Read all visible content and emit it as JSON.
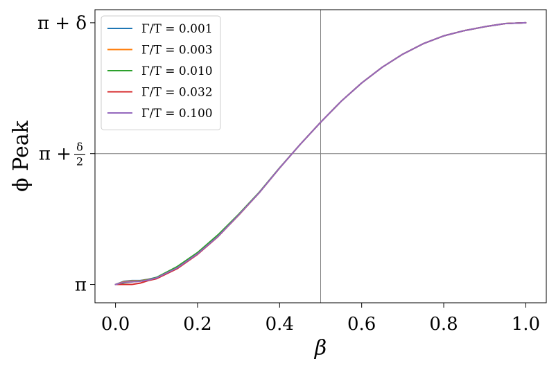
{
  "chart_data": {
    "type": "line",
    "xlabel": "β",
    "ylabel": "ϕ Peak",
    "xlim": [
      -0.05,
      1.05
    ],
    "ylim": [
      -0.07,
      1.05
    ],
    "x_ticks": [
      {
        "value": 0.0,
        "label": "0.0"
      },
      {
        "value": 0.2,
        "label": "0.2"
      },
      {
        "value": 0.4,
        "label": "0.4"
      },
      {
        "value": 0.6,
        "label": "0.6"
      },
      {
        "value": 0.8,
        "label": "0.8"
      },
      {
        "value": 1.0,
        "label": "1.0"
      }
    ],
    "y_ticks": [
      {
        "value": 0.0,
        "label": "π"
      },
      {
        "value": 0.5,
        "label": "π + δ/2"
      },
      {
        "value": 1.0,
        "label": "π + δ"
      }
    ],
    "reference_lines": {
      "x": 0.5,
      "y": 0.5
    },
    "legend": {
      "position": "top-left"
    },
    "series": [
      {
        "name": "Γ/T = 0.001",
        "color": "#1f77b4",
        "x": [
          0.0,
          0.02,
          0.04,
          0.06,
          0.08,
          0.1,
          0.15,
          0.2,
          0.25,
          0.3,
          0.35,
          0.4,
          0.45,
          0.5,
          0.55,
          0.6,
          0.65,
          0.7,
          0.75,
          0.8,
          0.85,
          0.9,
          0.95,
          1.0
        ],
        "y": [
          0.0,
          0.012,
          0.015,
          0.015,
          0.02,
          0.027,
          0.065,
          0.118,
          0.185,
          0.265,
          0.35,
          0.445,
          0.535,
          0.62,
          0.7,
          0.77,
          0.83,
          0.88,
          0.92,
          0.95,
          0.97,
          0.985,
          0.997,
          1.0
        ]
      },
      {
        "name": "Γ/T = 0.003",
        "color": "#ff7f0e",
        "x": [
          0.0,
          0.02,
          0.04,
          0.06,
          0.08,
          0.1,
          0.15,
          0.2,
          0.25,
          0.3,
          0.35,
          0.4,
          0.45,
          0.5,
          0.55,
          0.6,
          0.65,
          0.7,
          0.75,
          0.8,
          0.85,
          0.9,
          0.95,
          1.0
        ],
        "y": [
          0.0,
          0.01,
          0.013,
          0.014,
          0.019,
          0.026,
          0.064,
          0.117,
          0.184,
          0.264,
          0.35,
          0.445,
          0.535,
          0.62,
          0.7,
          0.77,
          0.83,
          0.88,
          0.92,
          0.95,
          0.97,
          0.985,
          0.997,
          1.0
        ]
      },
      {
        "name": "Γ/T = 0.010",
        "color": "#2ca02c",
        "x": [
          0.0,
          0.02,
          0.04,
          0.06,
          0.08,
          0.1,
          0.15,
          0.2,
          0.25,
          0.3,
          0.35,
          0.4,
          0.45,
          0.5,
          0.55,
          0.6,
          0.65,
          0.7,
          0.75,
          0.8,
          0.85,
          0.9,
          0.95,
          1.0
        ],
        "y": [
          0.0,
          0.006,
          0.01,
          0.013,
          0.018,
          0.027,
          0.068,
          0.122,
          0.19,
          0.268,
          0.352,
          0.446,
          0.535,
          0.62,
          0.7,
          0.77,
          0.83,
          0.88,
          0.92,
          0.95,
          0.97,
          0.985,
          0.997,
          1.0
        ]
      },
      {
        "name": "Γ/T = 0.032",
        "color": "#d62728",
        "x": [
          0.0,
          0.02,
          0.04,
          0.06,
          0.08,
          0.1,
          0.15,
          0.2,
          0.25,
          0.3,
          0.35,
          0.4,
          0.45,
          0.5,
          0.55,
          0.6,
          0.65,
          0.7,
          0.75,
          0.8,
          0.85,
          0.9,
          0.95,
          1.0
        ],
        "y": [
          0.0,
          0.0,
          0.0,
          0.005,
          0.015,
          0.022,
          0.06,
          0.115,
          0.183,
          0.265,
          0.35,
          0.445,
          0.535,
          0.62,
          0.7,
          0.77,
          0.83,
          0.88,
          0.92,
          0.95,
          0.97,
          0.985,
          0.997,
          1.0
        ]
      },
      {
        "name": "Γ/T = 0.100",
        "color": "#9467bd",
        "x": [
          0.0,
          0.02,
          0.04,
          0.06,
          0.08,
          0.1,
          0.15,
          0.2,
          0.25,
          0.3,
          0.35,
          0.4,
          0.45,
          0.5,
          0.55,
          0.6,
          0.65,
          0.7,
          0.75,
          0.8,
          0.85,
          0.9,
          0.95,
          1.0
        ],
        "y": [
          0.0,
          0.008,
          0.01,
          0.012,
          0.017,
          0.025,
          0.063,
          0.117,
          0.184,
          0.265,
          0.35,
          0.445,
          0.535,
          0.62,
          0.7,
          0.77,
          0.83,
          0.88,
          0.92,
          0.95,
          0.97,
          0.985,
          0.997,
          1.0
        ]
      }
    ]
  }
}
